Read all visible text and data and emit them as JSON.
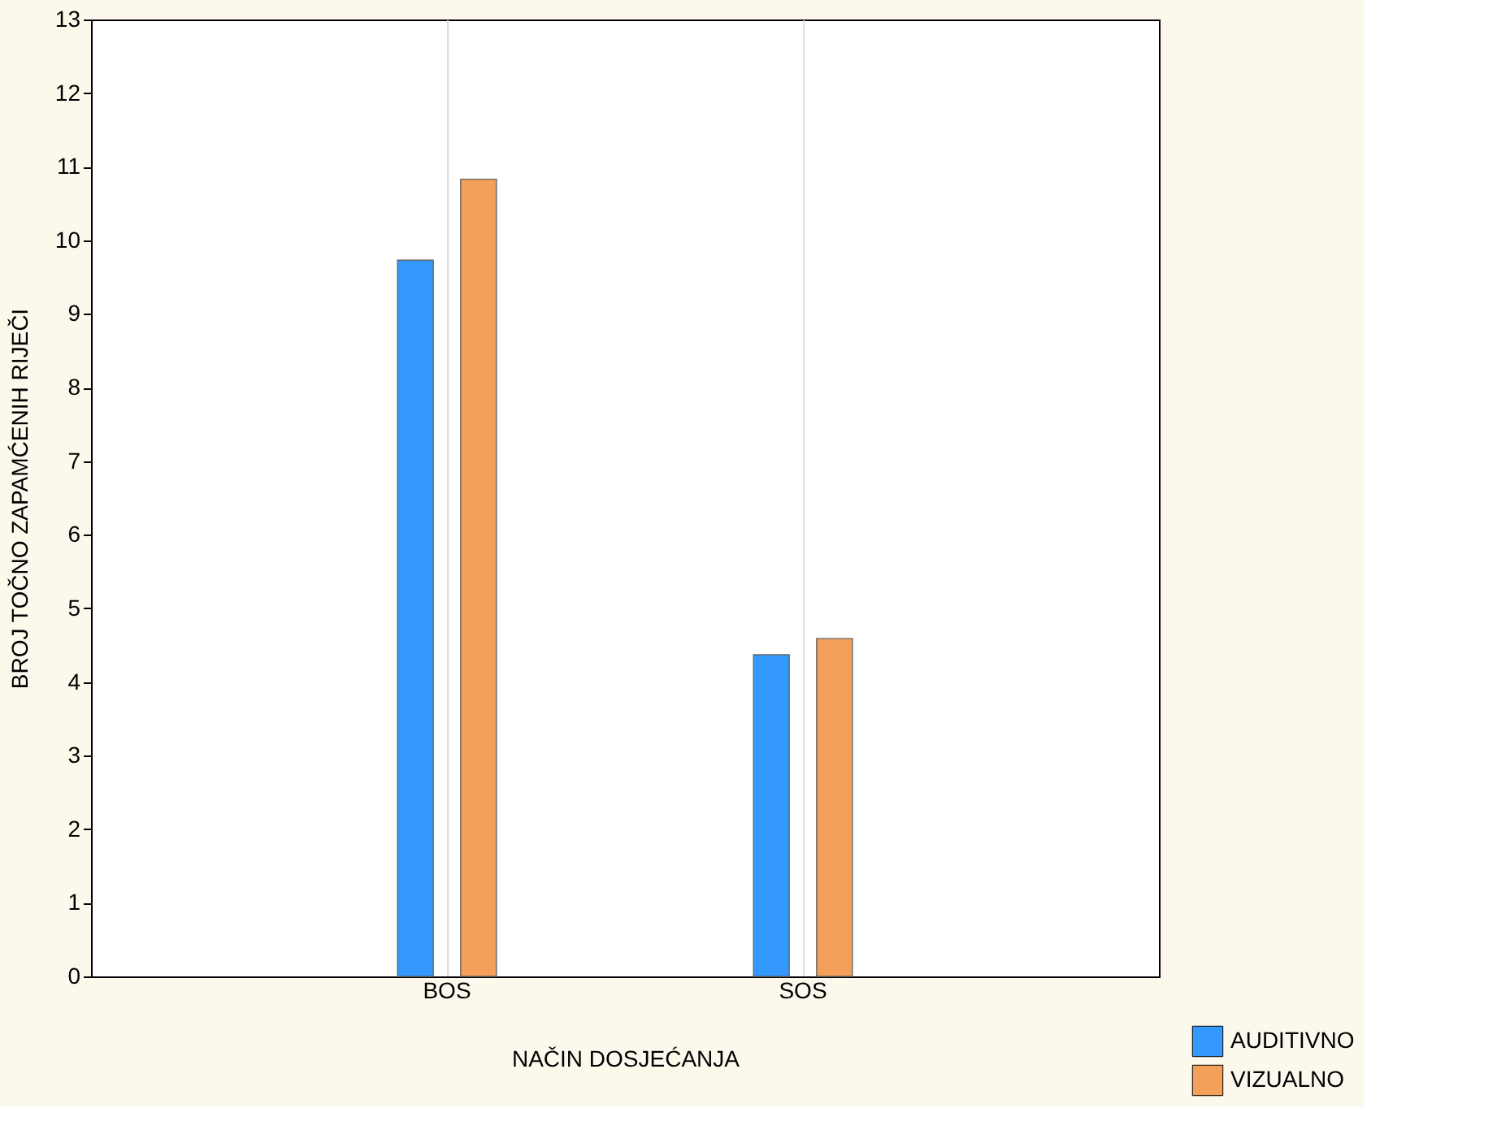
{
  "chart_data": {
    "type": "bar",
    "xlabel": "NAČIN DOSJEĆANJA",
    "ylabel": "BROJ TOČNO ZAPAMĆENIH RIJEČI",
    "categories": [
      "BOS",
      "SOS"
    ],
    "series": [
      {
        "name": "AUDITIVNO",
        "color": "#3399ff",
        "values": [
          9.73,
          4.37
        ]
      },
      {
        "name": "VIZUALNO",
        "color": "#f5a05a",
        "values": [
          10.83,
          4.59
        ]
      }
    ],
    "ylim": [
      0,
      13
    ],
    "yticks": [
      0,
      1,
      2,
      3,
      4,
      5,
      6,
      7,
      8,
      9,
      10,
      11,
      12,
      13
    ],
    "grid": "x",
    "legend": "bottom right"
  }
}
